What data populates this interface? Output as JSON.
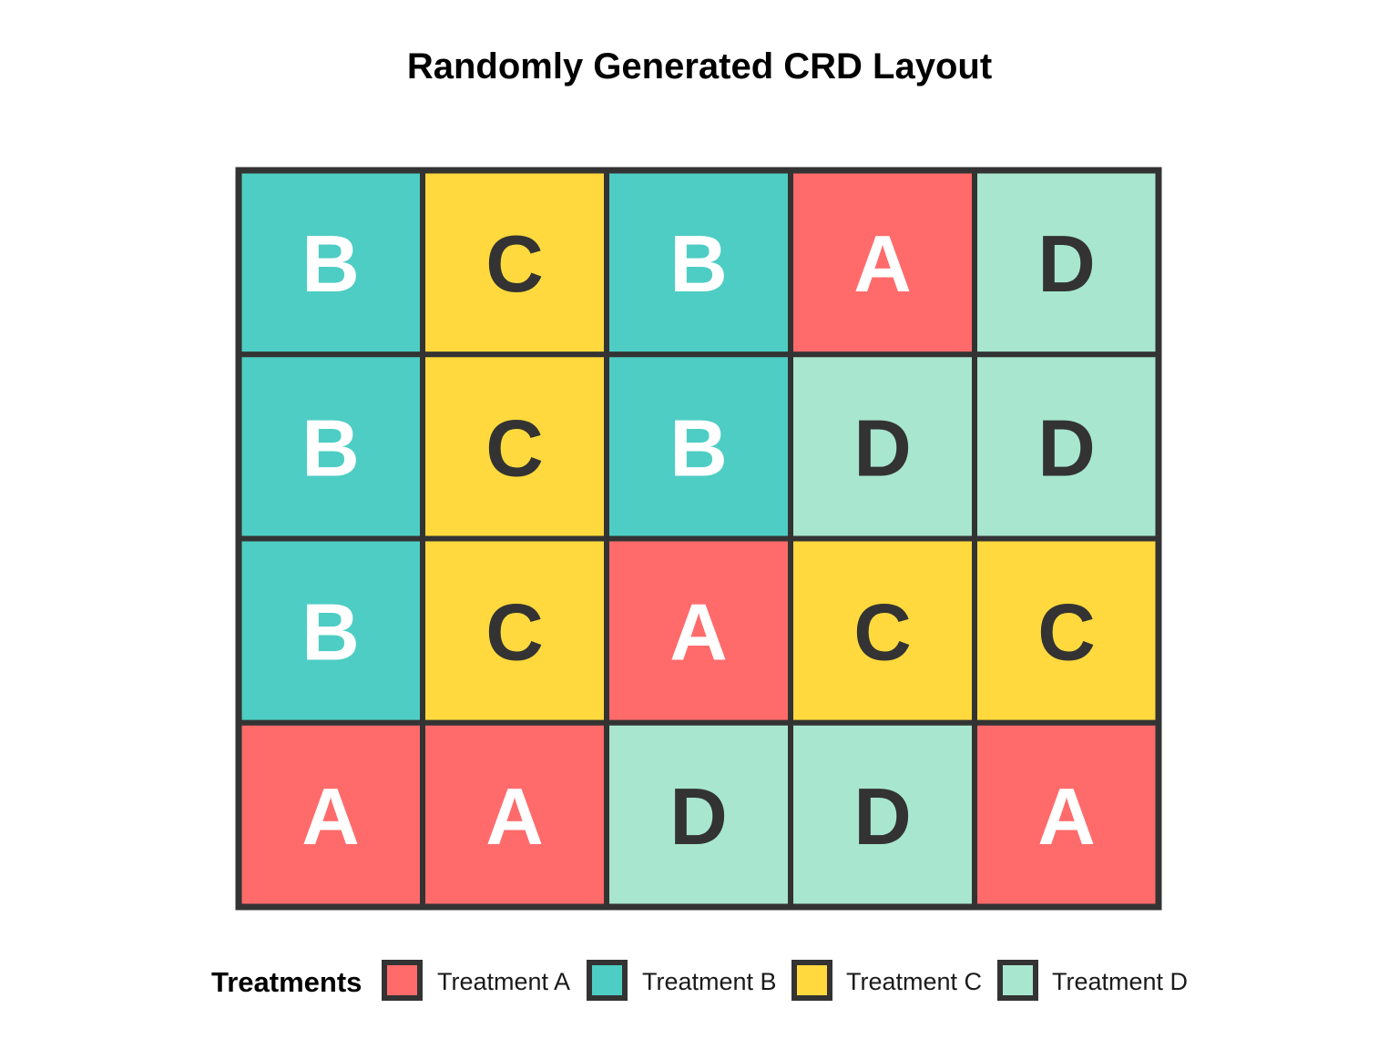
{
  "chart_data": {
    "type": "heatmap",
    "title": "Randomly Generated CRD Layout",
    "rows": 4,
    "cols": 5,
    "grid": [
      [
        "B",
        "C",
        "B",
        "A",
        "D"
      ],
      [
        "B",
        "C",
        "B",
        "D",
        "D"
      ],
      [
        "B",
        "C",
        "A",
        "C",
        "C"
      ],
      [
        "A",
        "A",
        "D",
        "D",
        "A"
      ]
    ],
    "treatments": {
      "A": {
        "color": "#FF6B6B",
        "text_color": "#FFFFFF"
      },
      "B": {
        "color": "#4ECDC4",
        "text_color": "#FFFFFF"
      },
      "C": {
        "color": "#FFD93D",
        "text_color": "#333333"
      },
      "D": {
        "color": "#A8E6CF",
        "text_color": "#333333"
      }
    },
    "border_color": "#333333",
    "legend": {
      "title": "Treatments",
      "position": "bottom",
      "items": [
        {
          "key": "A",
          "label": "Treatment A"
        },
        {
          "key": "B",
          "label": "Treatment B"
        },
        {
          "key": "C",
          "label": "Treatment C"
        },
        {
          "key": "D",
          "label": "Treatment D"
        }
      ]
    }
  }
}
